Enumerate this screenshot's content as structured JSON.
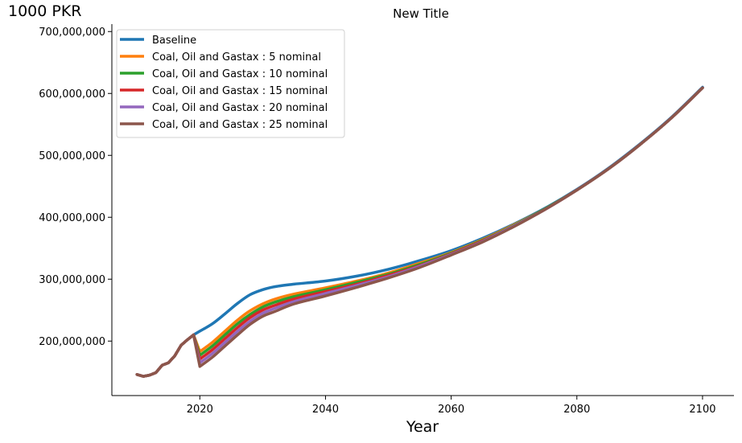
{
  "chart_data": {
    "type": "line",
    "title": "New Title",
    "unit_label": "1000 PKR",
    "xlabel": "Year",
    "ylabel": "",
    "xlim": [
      2006,
      2105
    ],
    "ylim": [
      112000000,
      712000000
    ],
    "xticks": [
      2020,
      2040,
      2060,
      2080,
      2100
    ],
    "xtick_labels": [
      "2020",
      "2040",
      "2060",
      "2080",
      "2100"
    ],
    "yticks": [
      200000000,
      300000000,
      400000000,
      500000000,
      600000000,
      700000000
    ],
    "ytick_labels": [
      "200,000,000",
      "300,000,000",
      "400,000,000",
      "500,000,000",
      "600,000,000",
      "700,000,000"
    ],
    "grid": false,
    "legend_position": "top-left",
    "colors": [
      "#1f77b4",
      "#ff7f0e",
      "#2ca02c",
      "#d62728",
      "#9467bd",
      "#8c564b"
    ],
    "history": {
      "x": [
        2010,
        2011,
        2012,
        2013,
        2014,
        2015,
        2016,
        2017,
        2018,
        2019
      ],
      "values": [
        146000000,
        143000000,
        145000000,
        149000000,
        161000000,
        165000000,
        176000000,
        193000000,
        202000000,
        210000000
      ]
    },
    "x": [
      2020,
      2022,
      2024,
      2026,
      2028,
      2030,
      2032,
      2035,
      2040,
      2045,
      2050,
      2055,
      2060,
      2065,
      2070,
      2075,
      2080,
      2085,
      2090,
      2095,
      2100
    ],
    "series": [
      {
        "name": "Baseline",
        "values": [
          216000000,
          228000000,
          244000000,
          261000000,
          275000000,
          283000000,
          288000000,
          292000000,
          297000000,
          305000000,
          316000000,
          330000000,
          346000000,
          366000000,
          389000000,
          415000000,
          445000000,
          479000000,
          518000000,
          561000000,
          610000000
        ]
      },
      {
        "name": "Coal, Oil and Gastax : 5 nominal",
        "values": [
          183000000,
          198000000,
          216000000,
          234000000,
          249000000,
          260000000,
          268000000,
          276000000,
          286000000,
          297000000,
          310000000,
          326000000,
          343000000,
          364000000,
          388000000,
          414000000,
          444000000,
          478000000,
          517000000,
          560000000,
          609000000
        ]
      },
      {
        "name": "Coal, Oil and Gastax : 10 nominal",
        "values": [
          177000000,
          192000000,
          210000000,
          228000000,
          243000000,
          255000000,
          263000000,
          272000000,
          283000000,
          295000000,
          308000000,
          324000000,
          342000000,
          363000000,
          387000000,
          414000000,
          444000000,
          478000000,
          517000000,
          560000000,
          609000000
        ]
      },
      {
        "name": "Coal, Oil and Gastax : 15 nominal",
        "values": [
          171000000,
          186000000,
          204000000,
          222000000,
          238000000,
          250000000,
          258000000,
          268000000,
          280000000,
          292000000,
          306000000,
          322000000,
          341000000,
          362000000,
          386000000,
          413000000,
          444000000,
          478000000,
          517000000,
          560000000,
          609000000
        ]
      },
      {
        "name": "Coal, Oil and Gastax : 20 nominal",
        "values": [
          165000000,
          180000000,
          198000000,
          216000000,
          232000000,
          245000000,
          253000000,
          264000000,
          277000000,
          290000000,
          304000000,
          321000000,
          340000000,
          361000000,
          386000000,
          413000000,
          444000000,
          478000000,
          517000000,
          560000000,
          609000000
        ]
      },
      {
        "name": "Coal, Oil and Gastax : 25 nominal",
        "values": [
          159000000,
          174000000,
          192000000,
          210000000,
          227000000,
          240000000,
          248000000,
          260000000,
          273000000,
          287000000,
          302000000,
          319000000,
          339000000,
          360000000,
          385000000,
          413000000,
          444000000,
          478000000,
          517000000,
          560000000,
          609000000
        ]
      }
    ]
  }
}
